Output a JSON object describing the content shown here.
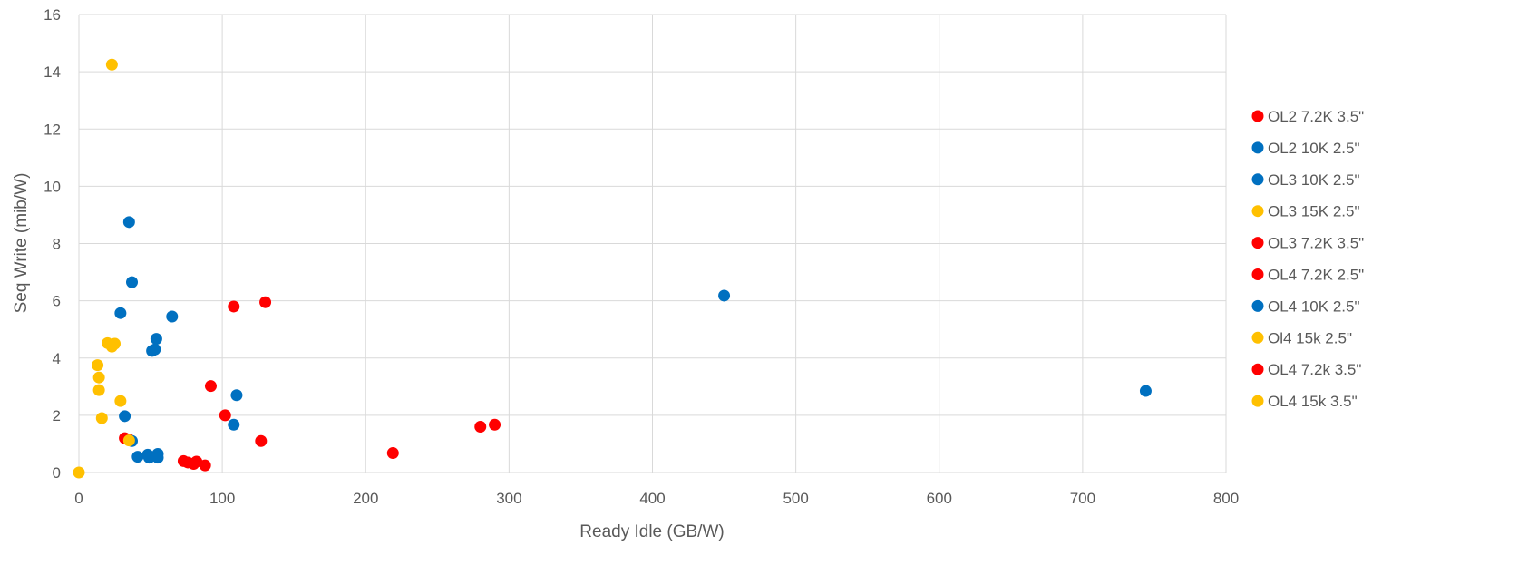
{
  "chart_data": {
    "type": "scatter",
    "title": "",
    "xlabel": "Ready Idle (GB/W)",
    "ylabel": "Seq Write (mib/W)",
    "xlim": [
      0,
      800
    ],
    "ylim": [
      0,
      16
    ],
    "x_ticks": [
      0,
      100,
      200,
      300,
      400,
      500,
      600,
      700,
      800
    ],
    "y_ticks": [
      0,
      2,
      4,
      6,
      8,
      10,
      12,
      14,
      16
    ],
    "grid": true,
    "legend_position": "right",
    "series": [
      {
        "name": "OL2 7.2K 3.5\"",
        "color": "#ff0000",
        "points": [
          [
            108,
            5.8
          ],
          [
            130,
            5.95
          ],
          [
            92,
            3.02
          ],
          [
            102,
            2.0
          ],
          [
            127,
            1.1
          ],
          [
            32,
            1.2
          ],
          [
            35,
            1.15
          ]
        ]
      },
      {
        "name": "OL2 10K 2.5\"",
        "color": "#0070c0",
        "points": [
          [
            35,
            8.75
          ],
          [
            37,
            6.65
          ],
          [
            29,
            5.57
          ],
          [
            65,
            5.45
          ],
          [
            54,
            4.67
          ],
          [
            53,
            4.3
          ],
          [
            51,
            4.25
          ],
          [
            110,
            2.7
          ],
          [
            108,
            1.67
          ],
          [
            32,
            1.97
          ]
        ]
      },
      {
        "name": "OL3 10K 2.5\"",
        "color": "#0070c0",
        "points": [
          [
            450,
            6.18
          ],
          [
            37,
            1.1
          ],
          [
            41,
            0.55
          ],
          [
            48,
            0.62
          ],
          [
            49,
            0.52
          ],
          [
            55,
            0.65
          ],
          [
            55,
            0.52
          ]
        ]
      },
      {
        "name": "OL3 15K 2.5\"",
        "color": "#ffc000",
        "points": [
          [
            23,
            14.25
          ],
          [
            20,
            4.52
          ],
          [
            25,
            4.5
          ],
          [
            23,
            4.4
          ],
          [
            13,
            3.75
          ],
          [
            14,
            3.32
          ],
          [
            14,
            2.88
          ],
          [
            29,
            2.5
          ],
          [
            16,
            1.9
          ]
        ]
      },
      {
        "name": "OL3 7.2K 3.5\"",
        "color": "#ff0000",
        "points": [
          [
            219,
            0.68
          ]
        ]
      },
      {
        "name": "OL4 7.2K 2.5\"",
        "color": "#ff0000",
        "points": [
          [
            280,
            1.6
          ],
          [
            290,
            1.67
          ]
        ]
      },
      {
        "name": "OL4 10K 2.5\"",
        "color": "#0070c0",
        "points": [
          [
            744,
            2.85
          ]
        ]
      },
      {
        "name": "Ol4 15k 2.5\"",
        "color": "#ffc000",
        "points": [
          [
            35,
            1.12
          ]
        ]
      },
      {
        "name": "OL4 7.2k 3.5\"",
        "color": "#ff0000",
        "points": [
          [
            73,
            0.4
          ],
          [
            76,
            0.35
          ],
          [
            80,
            0.3
          ],
          [
            82,
            0.38
          ],
          [
            88,
            0.25
          ]
        ]
      },
      {
        "name": "OL4 15k 3.5\"",
        "color": "#ffc000",
        "points": [
          [
            0,
            0.0
          ]
        ]
      }
    ]
  }
}
